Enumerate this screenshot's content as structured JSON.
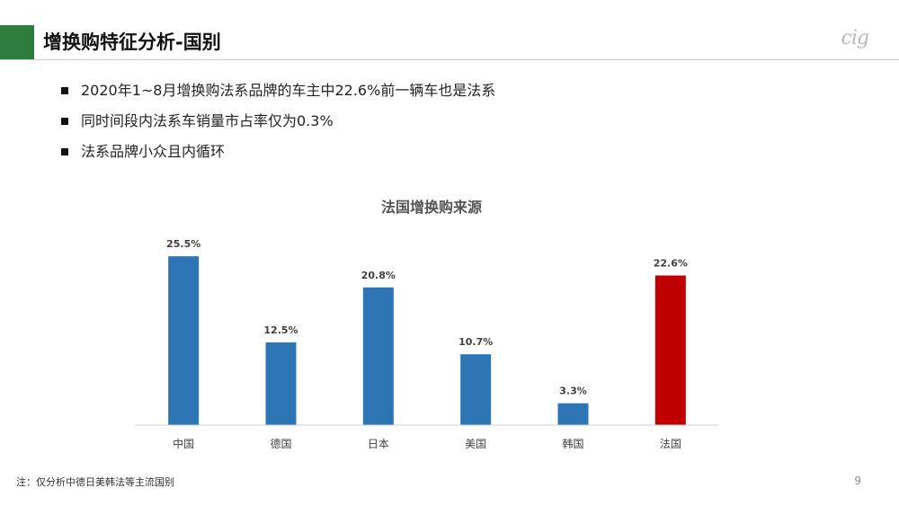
{
  "header": {
    "title": "增换购特征分析-国别",
    "logo_text": "cig",
    "accent_color": "#2e7d3e"
  },
  "bullets": [
    "2020年1~8月增换购法系品牌的车主中22.6%前一辆车也是法系",
    "同时间段内法系车销量市占率仅为0.3%",
    "法系品牌小众且内循环"
  ],
  "chart_data": {
    "type": "bar",
    "title": "法国增换购来源",
    "categories": [
      "中国",
      "德国",
      "日本",
      "美国",
      "韩国",
      "法国"
    ],
    "values": [
      25.5,
      12.5,
      20.8,
      10.7,
      3.3,
      22.6
    ],
    "data_labels": [
      "25.5%",
      "12.5%",
      "20.8%",
      "10.7%",
      "3.3%",
      "22.6%"
    ],
    "colors": [
      "#2e75b6",
      "#2e75b6",
      "#2e75b6",
      "#2e75b6",
      "#2e75b6",
      "#c00000"
    ],
    "ylim": [
      0,
      30
    ],
    "grid": false,
    "xlabel": "",
    "ylabel": ""
  },
  "footer": {
    "note": "注：仅分析中德日美韩法等主流国别",
    "page_number": "9"
  }
}
